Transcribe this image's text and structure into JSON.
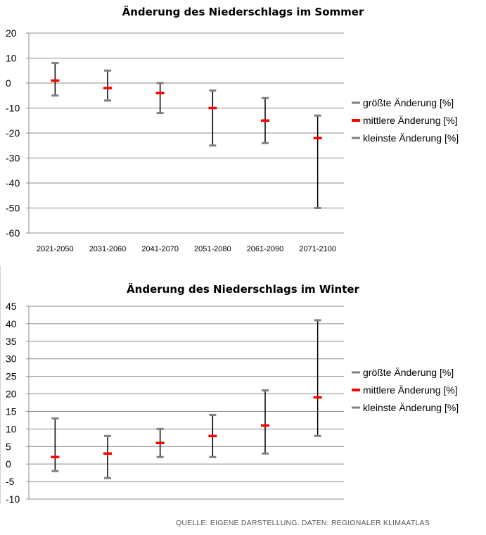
{
  "chart_data": [
    {
      "type": "line",
      "title": "Änderung des Niederschlags im Sommer",
      "categories": [
        "2021-2050",
        "2031-2060",
        "2041-2070",
        "2051-2080",
        "2061-2090",
        "2071-2100"
      ],
      "ylim": [
        -60,
        20
      ],
      "yticks": [
        20,
        10,
        0,
        -10,
        -20,
        -30,
        -40,
        -50,
        -60
      ],
      "grid": true,
      "legend_position": "right",
      "series": [
        {
          "name": "größte Änderung [%]",
          "color": "#808080",
          "values": [
            8,
            5,
            0,
            -3,
            -6,
            -13
          ]
        },
        {
          "name": "mittlere Änderung [%]",
          "color": "#ff0000",
          "values": [
            1,
            -2,
            -4,
            -10,
            -15,
            -22
          ]
        },
        {
          "name": "kleinste Änderung [%]",
          "color": "#808080",
          "values": [
            -5,
            -7,
            -12,
            -25,
            -24,
            -50
          ]
        }
      ]
    },
    {
      "type": "line",
      "title": "Änderung des Niederschlags im Winter",
      "categories": [
        "2021-2050",
        "2031-2060",
        "2041-2070",
        "2051-2080",
        "2061-2090",
        "2071-2100"
      ],
      "ylim": [
        -10,
        45
      ],
      "yticks": [
        45,
        40,
        35,
        30,
        25,
        20,
        15,
        10,
        5,
        0,
        -5,
        -10
      ],
      "grid": true,
      "legend_position": "right",
      "series": [
        {
          "name": "größte Änderung [%]",
          "color": "#808080",
          "values": [
            13,
            8,
            10,
            14,
            21,
            41
          ]
        },
        {
          "name": "mittlere Änderung [%]",
          "color": "#ff0000",
          "values": [
            2,
            3,
            6,
            8,
            11,
            19
          ]
        },
        {
          "name": "kleinste Änderung [%]",
          "color": "#808080",
          "values": [
            -2,
            -4,
            2,
            2,
            3,
            8
          ]
        }
      ]
    }
  ],
  "source": "QUELLE: EIGENE DARSTELLUNG. DATEN: REGIONALER KLIMAATLAS"
}
